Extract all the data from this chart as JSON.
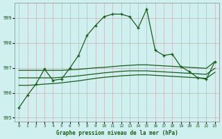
{
  "title": "Graphe pression niveau de la mer (hPa)",
  "bg_color": "#d0f0f0",
  "grid_color": "#c8b0b8",
  "line_color": "#1a5c1a",
  "xlim": [
    -0.5,
    23.5
  ],
  "ylim": [
    994.85,
    999.6
  ],
  "yticks": [
    995,
    996,
    997,
    998,
    999
  ],
  "xticks": [
    0,
    1,
    2,
    3,
    4,
    5,
    6,
    7,
    8,
    9,
    10,
    11,
    12,
    13,
    14,
    15,
    16,
    17,
    18,
    19,
    20,
    21,
    22,
    23
  ],
  "main_x": [
    0,
    1,
    2,
    3,
    4,
    5,
    6,
    7,
    8,
    9,
    10,
    11,
    12,
    13,
    14,
    15,
    16,
    17,
    18,
    19,
    20,
    21,
    22,
    23
  ],
  "main_y": [
    995.4,
    995.9,
    996.35,
    996.95,
    996.5,
    996.55,
    997.0,
    997.5,
    998.3,
    998.7,
    999.05,
    999.15,
    999.15,
    999.05,
    998.6,
    999.35,
    997.7,
    997.5,
    997.55,
    997.05,
    996.85,
    996.6,
    996.55,
    997.25
  ],
  "smooth1_x": [
    0,
    1,
    2,
    3,
    4,
    5,
    6,
    7,
    8,
    9,
    10,
    11,
    12,
    13,
    14,
    15,
    16,
    17,
    18,
    19,
    20,
    21,
    22,
    23
  ],
  "smooth1_y": [
    996.9,
    996.9,
    996.9,
    996.9,
    996.9,
    996.9,
    996.92,
    996.94,
    996.97,
    997.0,
    997.02,
    997.05,
    997.08,
    997.1,
    997.12,
    997.12,
    997.1,
    997.08,
    997.06,
    997.04,
    997.02,
    997.0,
    996.98,
    997.25
  ],
  "smooth2_x": [
    0,
    1,
    2,
    3,
    4,
    5,
    6,
    7,
    8,
    9,
    10,
    11,
    12,
    13,
    14,
    15,
    16,
    17,
    18,
    19,
    20,
    21,
    22,
    23
  ],
  "smooth2_y": [
    996.6,
    996.6,
    996.6,
    996.6,
    996.6,
    996.62,
    996.65,
    996.68,
    996.72,
    996.76,
    996.8,
    996.83,
    996.86,
    996.88,
    996.88,
    996.88,
    996.86,
    996.84,
    996.82,
    996.8,
    996.78,
    996.76,
    996.74,
    996.98
  ],
  "smooth3_x": [
    0,
    1,
    2,
    3,
    4,
    5,
    6,
    7,
    8,
    9,
    10,
    11,
    12,
    13,
    14,
    15,
    16,
    17,
    18,
    19,
    20,
    21,
    22,
    23
  ],
  "smooth3_y": [
    996.3,
    996.3,
    996.32,
    996.35,
    996.37,
    996.4,
    996.44,
    996.48,
    996.53,
    996.58,
    996.62,
    996.65,
    996.68,
    996.7,
    996.72,
    996.72,
    996.7,
    996.68,
    996.66,
    996.64,
    996.62,
    996.6,
    996.58,
    996.82
  ]
}
